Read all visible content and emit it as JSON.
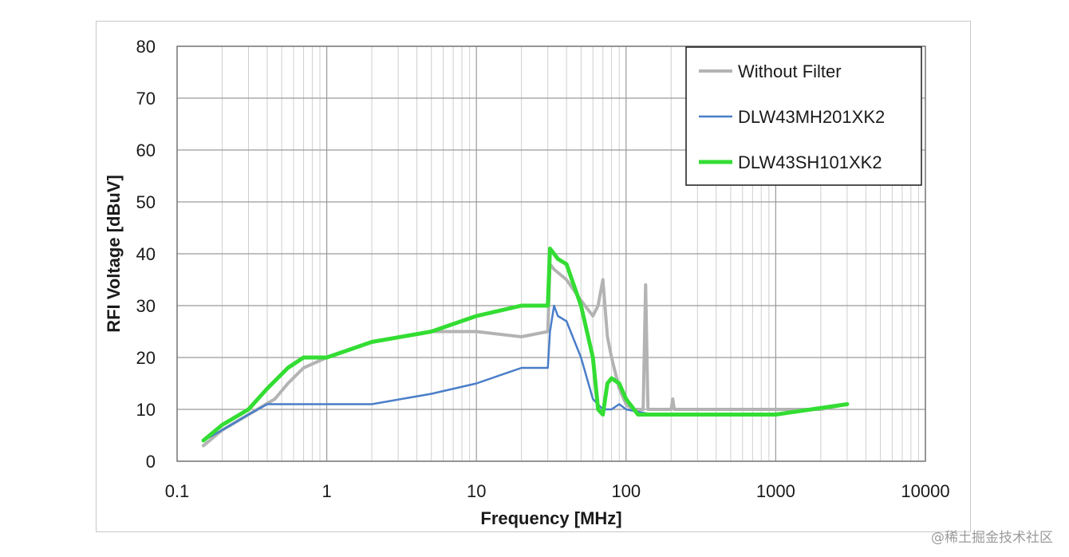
{
  "chart_data": {
    "type": "line",
    "title": "",
    "xlabel": "Frequency [MHz]",
    "ylabel": "RFI Voltage [dBuV]",
    "x_scale": "log",
    "xlim": [
      0.1,
      10000
    ],
    "ylim": [
      0,
      80
    ],
    "x_ticks": [
      "0.1",
      "1",
      "10",
      "100",
      "1000",
      "10000"
    ],
    "y_ticks": [
      "0",
      "10",
      "20",
      "30",
      "40",
      "50",
      "60",
      "70",
      "80"
    ],
    "grid": true,
    "legend_position": "top-right",
    "series": [
      {
        "name": "Without Filter",
        "color": "#b3b3b3",
        "x": [
          0.15,
          0.2,
          0.3,
          0.45,
          0.55,
          0.7,
          1,
          2,
          5,
          10,
          20,
          30,
          31,
          33,
          40,
          50,
          60,
          65,
          70,
          75,
          80,
          90,
          100,
          110,
          130,
          135,
          140,
          200,
          205,
          210,
          300,
          500,
          1000,
          2000,
          3000
        ],
        "y": [
          3,
          6,
          9,
          12,
          15,
          18,
          20,
          23,
          25,
          25,
          24,
          25,
          38,
          37,
          35,
          31,
          28,
          30,
          35,
          24,
          20,
          14,
          11,
          10,
          10,
          34,
          10,
          10,
          12,
          10,
          10,
          10,
          10,
          10,
          11
        ]
      },
      {
        "name": "DLW43MH201XK2",
        "color": "#4a7ec8",
        "x": [
          0.15,
          0.2,
          0.3,
          0.4,
          0.5,
          0.7,
          1,
          2,
          5,
          10,
          20,
          30,
          31,
          33,
          35,
          40,
          50,
          60,
          70,
          80,
          90,
          100,
          150,
          300,
          1000,
          3000
        ],
        "y": [
          4,
          6,
          9,
          11,
          11,
          11,
          11,
          11,
          13,
          15,
          18,
          18,
          25,
          30,
          28,
          27,
          20,
          12,
          10,
          10,
          11,
          10,
          9,
          9,
          9,
          11
        ]
      },
      {
        "name": "DLW43SH101XK2",
        "color": "#33dd33",
        "x": [
          0.15,
          0.2,
          0.3,
          0.4,
          0.55,
          0.7,
          1,
          2,
          5,
          10,
          20,
          30,
          31,
          33,
          35,
          40,
          50,
          60,
          65,
          70,
          75,
          80,
          90,
          100,
          120,
          150,
          300,
          1000,
          3000
        ],
        "y": [
          4,
          7,
          10,
          14,
          18,
          20,
          20,
          23,
          25,
          28,
          30,
          30,
          41,
          40,
          39,
          38,
          30,
          20,
          10,
          9,
          15,
          16,
          15,
          12,
          9,
          9,
          9,
          9,
          11
        ]
      }
    ]
  },
  "watermark": "@稀土掘金技术社区"
}
